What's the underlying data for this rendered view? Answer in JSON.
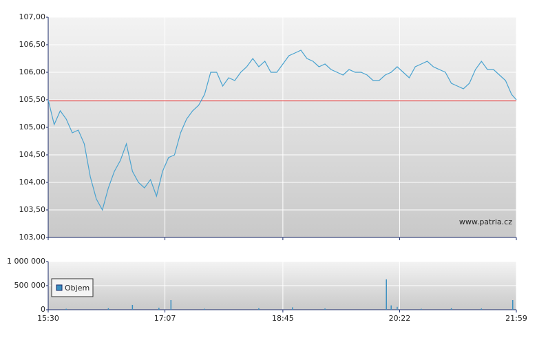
{
  "chart_data": [
    {
      "type": "line",
      "x": [
        "15:30",
        "15:35",
        "15:40",
        "15:45",
        "15:50",
        "15:55",
        "16:00",
        "16:05",
        "16:10",
        "16:15",
        "16:20",
        "16:25",
        "16:30",
        "16:35",
        "16:40",
        "16:45",
        "16:50",
        "16:55",
        "17:00",
        "17:05",
        "17:10",
        "17:15",
        "17:20",
        "17:25",
        "17:30",
        "17:35",
        "17:40",
        "17:45",
        "17:50",
        "17:55",
        "18:00",
        "18:05",
        "18:10",
        "18:15",
        "18:20",
        "18:25",
        "18:30",
        "18:35",
        "18:40",
        "18:45",
        "18:50",
        "18:55",
        "19:00",
        "19:05",
        "19:10",
        "19:15",
        "19:20",
        "19:25",
        "19:30",
        "19:35",
        "19:40",
        "19:45",
        "19:50",
        "19:55",
        "20:00",
        "20:05",
        "20:10",
        "20:15",
        "20:20",
        "20:25",
        "20:30",
        "20:35",
        "20:40",
        "20:45",
        "20:50",
        "20:55",
        "21:00",
        "21:05",
        "21:10",
        "21:15",
        "21:20",
        "21:25",
        "21:30",
        "21:35",
        "21:40",
        "21:45",
        "21:50",
        "21:55",
        "21:59"
      ],
      "series": [
        {
          "color": "#4aa3d0",
          "values": [
            105.5,
            105.05,
            105.3,
            105.15,
            104.9,
            104.95,
            104.7,
            104.1,
            103.7,
            103.5,
            103.9,
            104.2,
            104.4,
            104.7,
            104.2,
            104.0,
            103.9,
            104.05,
            103.75,
            104.2,
            104.45,
            104.5,
            104.9,
            105.15,
            105.3,
            105.4,
            105.6,
            106.0,
            106.0,
            105.75,
            105.9,
            105.85,
            106.0,
            106.1,
            106.25,
            106.1,
            106.2,
            106.0,
            106.0,
            106.15,
            106.3,
            106.35,
            106.4,
            106.25,
            106.2,
            106.1,
            106.15,
            106.05,
            106.0,
            105.95,
            106.05,
            106.0,
            106.0,
            105.95,
            105.85,
            105.85,
            105.95,
            106.0,
            106.1,
            106.0,
            105.9,
            106.1,
            106.15,
            106.2,
            106.1,
            106.05,
            106.0,
            105.8,
            105.75,
            105.7,
            105.8,
            106.05,
            106.2,
            106.05,
            106.05,
            105.95,
            105.85,
            105.6,
            105.5
          ]
        }
      ],
      "reference": {
        "value": 105.48,
        "color": "#e03030"
      },
      "xlim": [
        "15:30",
        "21:59"
      ],
      "ylim": [
        103,
        107
      ],
      "yticks": [
        {
          "value": 103,
          "label": "103,00"
        },
        {
          "value": 103.5,
          "label": "103,50"
        },
        {
          "value": 104,
          "label": "104,00"
        },
        {
          "value": 104.5,
          "label": "104,50"
        },
        {
          "value": 105,
          "label": "105,00"
        },
        {
          "value": 105.5,
          "label": "105,50"
        },
        {
          "value": 106,
          "label": "106,00"
        },
        {
          "value": 106.5,
          "label": "106,50"
        },
        {
          "value": 107,
          "label": "107,00"
        }
      ],
      "grid": true,
      "watermark": "www.patria.cz"
    },
    {
      "type": "bar",
      "x": [
        "15:45",
        "16:20",
        "16:40",
        "17:02",
        "17:12",
        "17:40",
        "18:25",
        "18:53",
        "19:20",
        "20:11",
        "20:15",
        "20:20",
        "20:40",
        "21:05",
        "21:30",
        "21:56"
      ],
      "series": [
        {
          "name": "Objem",
          "color": "#3a8fc0",
          "values": [
            20000,
            30000,
            100000,
            40000,
            200000,
            20000,
            30000,
            50000,
            25000,
            630000,
            90000,
            60000,
            20000,
            30000,
            25000,
            200000
          ]
        }
      ],
      "xlim": [
        "15:30",
        "21:59"
      ],
      "xticks": [
        "15:30",
        "17:07",
        "18:45",
        "20:22",
        "21:59"
      ],
      "ylim": [
        0,
        1000000
      ],
      "yticks": [
        0,
        {
          "value": 500000,
          "label": "500 000"
        },
        {
          "value": 1000000,
          "label": "1 000 000"
        }
      ],
      "grid": true,
      "legend": "left"
    }
  ]
}
